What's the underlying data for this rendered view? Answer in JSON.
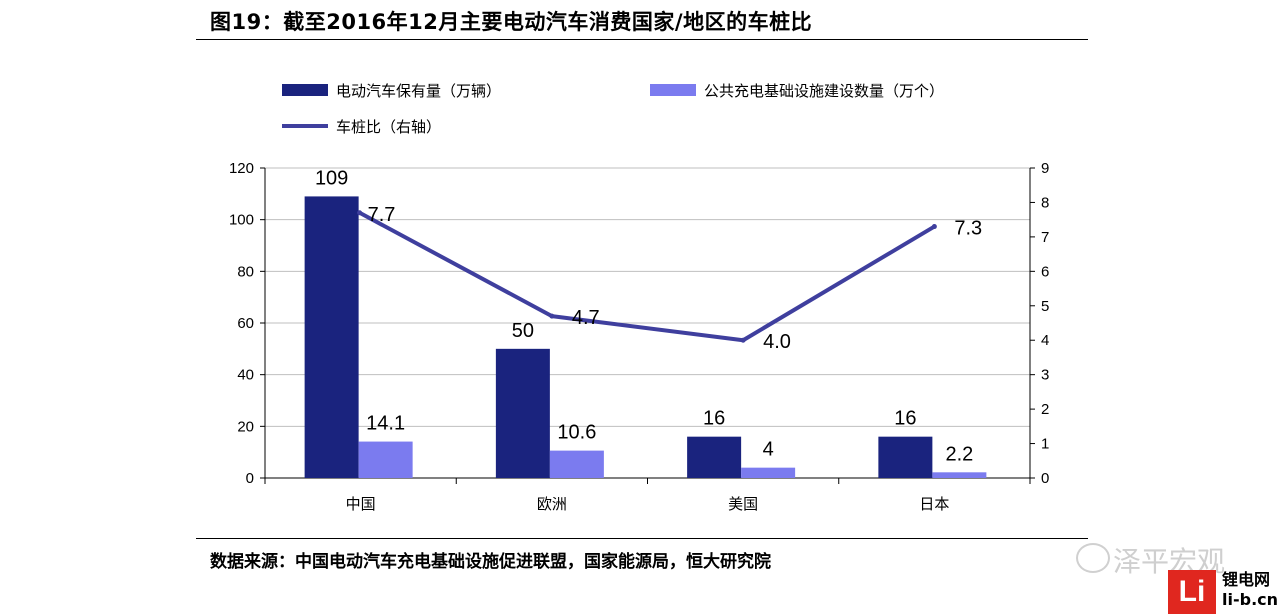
{
  "title": "图19：截至2016年12月主要电动汽车消费国家/地区的车桩比",
  "source": "数据来源：中国电动汽车充电基础设施促进联盟，国家能源局，恒大研究院",
  "watermark": "泽平宏观",
  "site": {
    "logo_text": "Li",
    "name": "锂电网",
    "domain": "li-b.cn"
  },
  "colors": {
    "ev": "#1a237e",
    "chargers": "#7b7bef",
    "ratio": "#3f3f9e",
    "grid": "#bfbfbf"
  },
  "chart_data": {
    "type": "bar",
    "categories": [
      "中国",
      "欧洲",
      "美国",
      "日本"
    ],
    "series": [
      {
        "name": "电动汽车保有量（万辆）",
        "type": "bar",
        "axis": "left",
        "values": [
          109,
          50,
          16,
          16
        ],
        "labels": [
          "109",
          "50",
          "16",
          "16"
        ]
      },
      {
        "name": "公共充电基础设施建设数量（万个）",
        "type": "bar",
        "axis": "left",
        "values": [
          14.1,
          10.6,
          4,
          2.2
        ],
        "labels": [
          "14.1",
          "10.6",
          "4",
          "2.2"
        ]
      },
      {
        "name": "车桩比（右轴）",
        "type": "line",
        "axis": "right",
        "values": [
          7.7,
          4.7,
          4.0,
          7.3
        ],
        "labels": [
          "7.7",
          "4.7",
          "4.0",
          "7.3"
        ]
      }
    ],
    "ylim": [
      0,
      120
    ],
    "yticks": [
      "0",
      "20",
      "40",
      "60",
      "80",
      "100",
      "120"
    ],
    "y2lim": [
      0,
      9
    ],
    "y2ticks": [
      "0",
      "1",
      "2",
      "3",
      "4",
      "5",
      "6",
      "7",
      "8",
      "9"
    ],
    "grid": true,
    "legend_position": "top"
  }
}
